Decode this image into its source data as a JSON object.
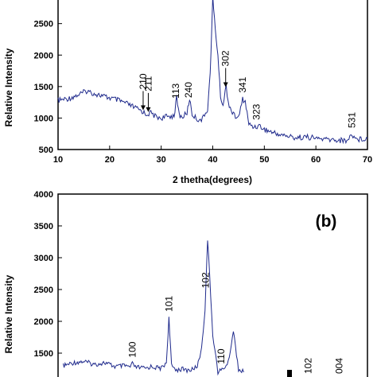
{
  "chart_data": [
    {
      "type": "line",
      "panel_label": "",
      "xlabel": "2 thetha(degrees)",
      "ylabel": "Relative Intensity",
      "xlim": [
        10,
        70
      ],
      "ylim": [
        500,
        2900
      ],
      "x_ticks": [
        "10",
        "20",
        "30",
        "40",
        "50",
        "60",
        "70"
      ],
      "y_ticks": [
        "500",
        "1000",
        "1500",
        "2000",
        "2500"
      ],
      "line_color": "#1f2a8c",
      "series": [
        {
          "x": [
            10,
            12,
            14,
            15.5,
            17,
            19,
            21,
            23,
            25,
            26.5,
            27,
            28,
            29,
            30,
            31,
            32.5,
            33,
            33.5,
            34,
            35,
            35.5,
            36,
            37,
            38,
            39,
            39.5,
            40,
            40.5,
            41,
            41.5,
            42,
            42.6,
            43,
            44,
            45,
            45.8,
            46.3,
            47,
            48,
            49,
            50,
            52,
            54,
            56,
            58,
            60,
            62,
            64,
            66,
            67,
            68,
            70
          ],
          "y": [
            1280,
            1310,
            1370,
            1430,
            1390,
            1340,
            1300,
            1240,
            1160,
            1100,
            1060,
            1080,
            1020,
            1000,
            1020,
            1040,
            1320,
            1050,
            1010,
            1080,
            1310,
            1060,
            980,
            980,
            1150,
            1700,
            2900,
            2400,
            2000,
            1350,
            1200,
            1520,
            1250,
            1050,
            1000,
            1300,
            1260,
            900,
            860,
            880,
            820,
            760,
            720,
            690,
            700,
            680,
            660,
            650,
            640,
            740,
            660,
            680
          ]
        }
      ],
      "annotations": [
        {
          "label": "210",
          "x": 26.5,
          "arrow": true
        },
        {
          "label": "211",
          "x": 27.5,
          "arrow": true
        },
        {
          "label": "113",
          "x": 32.8,
          "arrow": false
        },
        {
          "label": "240",
          "x": 35.3,
          "arrow": false
        },
        {
          "label": "302",
          "x": 42.5,
          "arrow": true
        },
        {
          "label": "341",
          "x": 45.8,
          "arrow": false
        },
        {
          "label": "323",
          "x": 48.5,
          "arrow": false
        },
        {
          "label": "531",
          "x": 67,
          "arrow": false
        }
      ]
    },
    {
      "type": "line",
      "panel_label": "(b)",
      "xlabel": "",
      "ylabel": "Relative Intensity",
      "ylim": [
        1000,
        4000
      ],
      "y_ticks": [
        "4000",
        "3500",
        "3000",
        "2500",
        "2000",
        "1500"
      ],
      "line_color": "#1f2a8c",
      "series": [
        {
          "x": [
            11,
            13,
            15,
            17,
            19,
            21,
            23,
            24,
            24.4,
            25,
            26,
            27,
            28,
            30,
            31,
            31.5,
            32,
            33,
            34,
            35,
            36,
            37,
            37.5,
            38,
            38.5,
            39,
            40,
            41,
            42,
            43,
            44,
            45,
            46
          ],
          "y": [
            1300,
            1350,
            1370,
            1320,
            1350,
            1290,
            1300,
            1280,
            1330,
            1280,
            1270,
            1260,
            1290,
            1260,
            1350,
            2050,
            1300,
            1240,
            1250,
            1230,
            1240,
            1300,
            1450,
            1700,
            2200,
            3300,
            1800,
            1200,
            1250,
            1350,
            1850,
            1250,
            1200
          ]
        }
      ],
      "annotations": [
        {
          "label": "100",
          "x": 24.4
        },
        {
          "label": "101",
          "x": 31.5
        },
        {
          "label": "102",
          "x": 38.6
        },
        {
          "label": "110",
          "x": 41.6
        },
        {
          "label": "102",
          "x": 58.5
        },
        {
          "label": "004",
          "x": 64.5
        }
      ]
    }
  ]
}
